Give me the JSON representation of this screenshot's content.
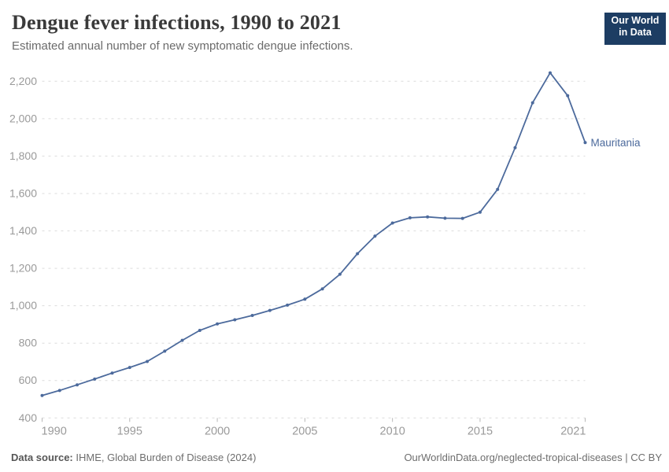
{
  "header": {
    "title": "Dengue fever infections, 1990 to 2021",
    "subtitle": "Estimated annual number of new symptomatic dengue infections.",
    "logo": {
      "line1": "Our World",
      "line2": "in Data"
    }
  },
  "footer": {
    "source_label": "Data source:",
    "source_text": " IHME, Global Burden of Disease (2024)",
    "link_text": "OurWorldinData.org/neglected-tropical-diseases | CC BY"
  },
  "colors": {
    "line": "#4C6A9C",
    "entity_label": "#4C6A9C",
    "axis_text": "#9a9a9a",
    "gridline": "#dcdcdc",
    "tick_mark": "#b8b8b8",
    "logo_bg": "#1d3d63",
    "logo_stripe": "#cf2722"
  },
  "chart_data": {
    "type": "line",
    "title": "Dengue fever infections, 1990 to 2021",
    "subtitle": "Estimated annual number of new symptomatic dengue infections.",
    "xlabel": "",
    "ylabel": "",
    "xlim": [
      1990,
      2021
    ],
    "ylim": [
      400,
      2200
    ],
    "grid": "horizontal dashed",
    "legend_position": "end-of-line label",
    "x_ticks": [
      1990,
      1995,
      2000,
      2005,
      2010,
      2015,
      2021
    ],
    "y_ticks": [
      400,
      600,
      800,
      1000,
      1200,
      1400,
      1600,
      1800,
      2000,
      2200
    ],
    "series": [
      {
        "name": "Mauritania",
        "x": [
          1990,
          1991,
          1992,
          1993,
          1994,
          1995,
          1996,
          1997,
          1998,
          1999,
          2000,
          2001,
          2002,
          2003,
          2004,
          2005,
          2006,
          2007,
          2008,
          2009,
          2010,
          2011,
          2012,
          2013,
          2014,
          2015,
          2016,
          2017,
          2018,
          2019,
          2020,
          2021
        ],
        "values": [
          520,
          547,
          577,
          608,
          640,
          670,
          702,
          757,
          815,
          868,
          903,
          925,
          948,
          975,
          1003,
          1035,
          1090,
          1168,
          1278,
          1372,
          1442,
          1470,
          1475,
          1468,
          1467,
          1500,
          1622,
          1845,
          2085,
          2245,
          2123,
          1872
        ]
      }
    ]
  }
}
